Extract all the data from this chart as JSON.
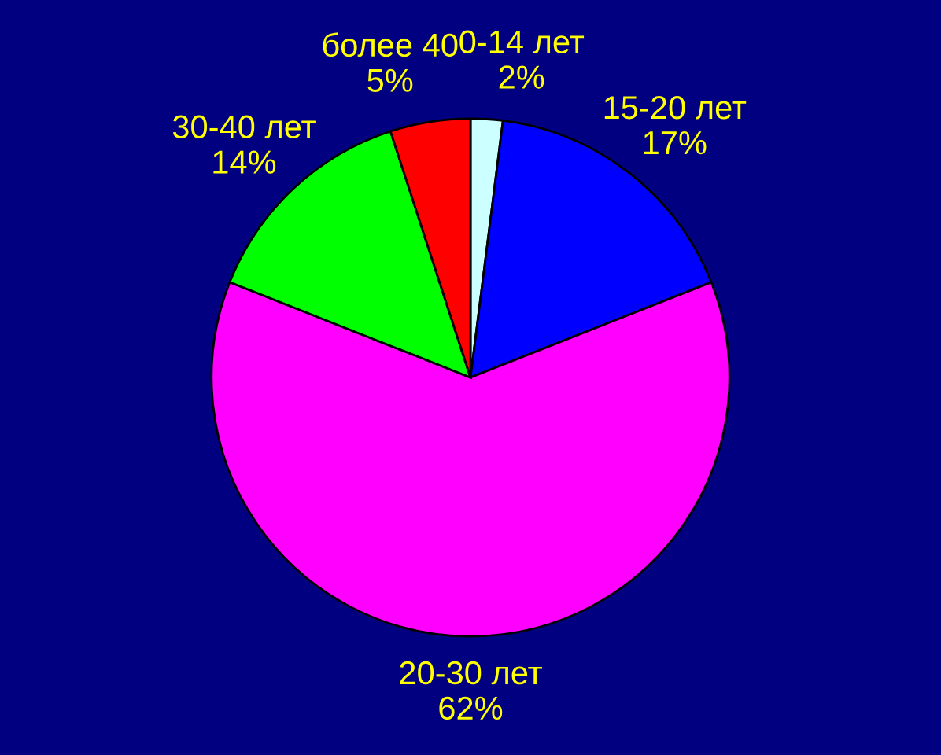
{
  "chart_data": {
    "type": "pie",
    "categories": [
      "0-14 лет",
      "15-20 лет",
      "20-30 лет",
      "30-40 лет",
      "более 40"
    ],
    "values": [
      2,
      17,
      62,
      14,
      5
    ],
    "value_labels": [
      "2%",
      "17%",
      "62%",
      "14%",
      "5%"
    ],
    "colors": [
      "#ccffff",
      "#0000ff",
      "#ff00ff",
      "#00ff00",
      "#ff0000"
    ]
  }
}
